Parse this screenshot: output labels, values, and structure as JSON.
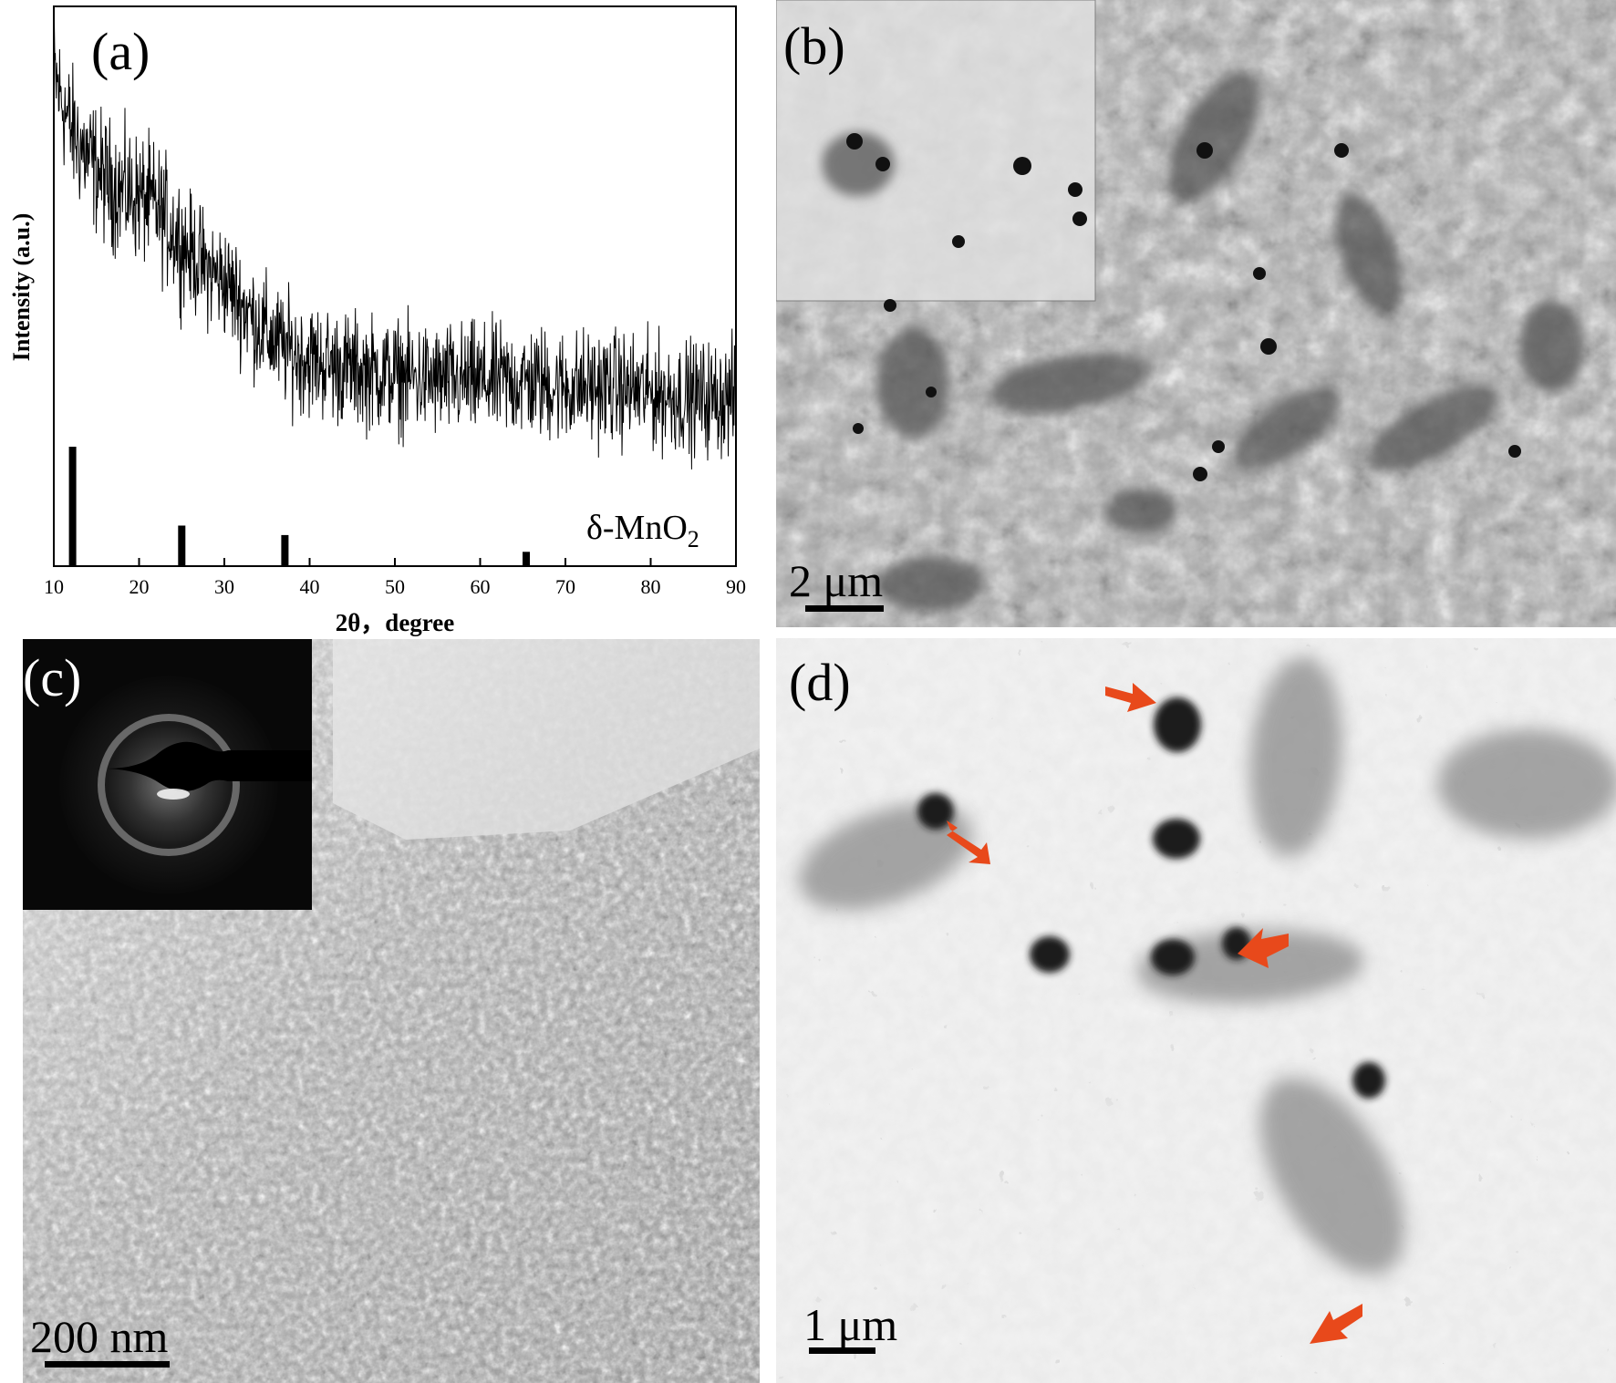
{
  "panels": {
    "a": {
      "label": "(a)"
    },
    "b": {
      "label": "(b)",
      "scale": "2 μm"
    },
    "c": {
      "label": "(c)",
      "scale": "200 nm"
    },
    "d": {
      "label": "(d)",
      "scale": "1 μm"
    }
  },
  "chart_data": {
    "type": "line",
    "title": "",
    "xlabel": "2θ，degree",
    "ylabel": "Intensity (a.u.)",
    "xlim": [
      10,
      90
    ],
    "xticks": [
      10,
      20,
      30,
      40,
      50,
      60,
      70,
      80,
      90
    ],
    "yticks_shown": false,
    "series": [
      {
        "style": "noisy-line",
        "color": "#000000",
        "x": [
          10,
          12,
          14,
          16,
          18,
          20,
          22,
          24,
          26,
          28,
          30,
          32,
          34,
          36,
          38,
          40,
          45,
          50,
          55,
          60,
          65,
          70,
          75,
          80,
          85,
          90
        ],
        "y": [
          88,
          78,
          73,
          69,
          67,
          66,
          64,
          60,
          56,
          53,
          51,
          47,
          43,
          40,
          38,
          37,
          35,
          34,
          33,
          33,
          33,
          32,
          32,
          31,
          30,
          30
        ],
        "noise_amplitude": 5
      }
    ],
    "reference_bars": {
      "label": "δ-MnO",
      "label_subscript": "2",
      "x": [
        12.2,
        25,
        37.1,
        65.4
      ],
      "y": [
        100,
        34,
        26,
        12
      ]
    },
    "yscale_note": "relative intensity, arbitrary units (0–100)"
  },
  "colors": {
    "arrow": "#e8491b",
    "text": "#000000",
    "background": "#ffffff"
  }
}
